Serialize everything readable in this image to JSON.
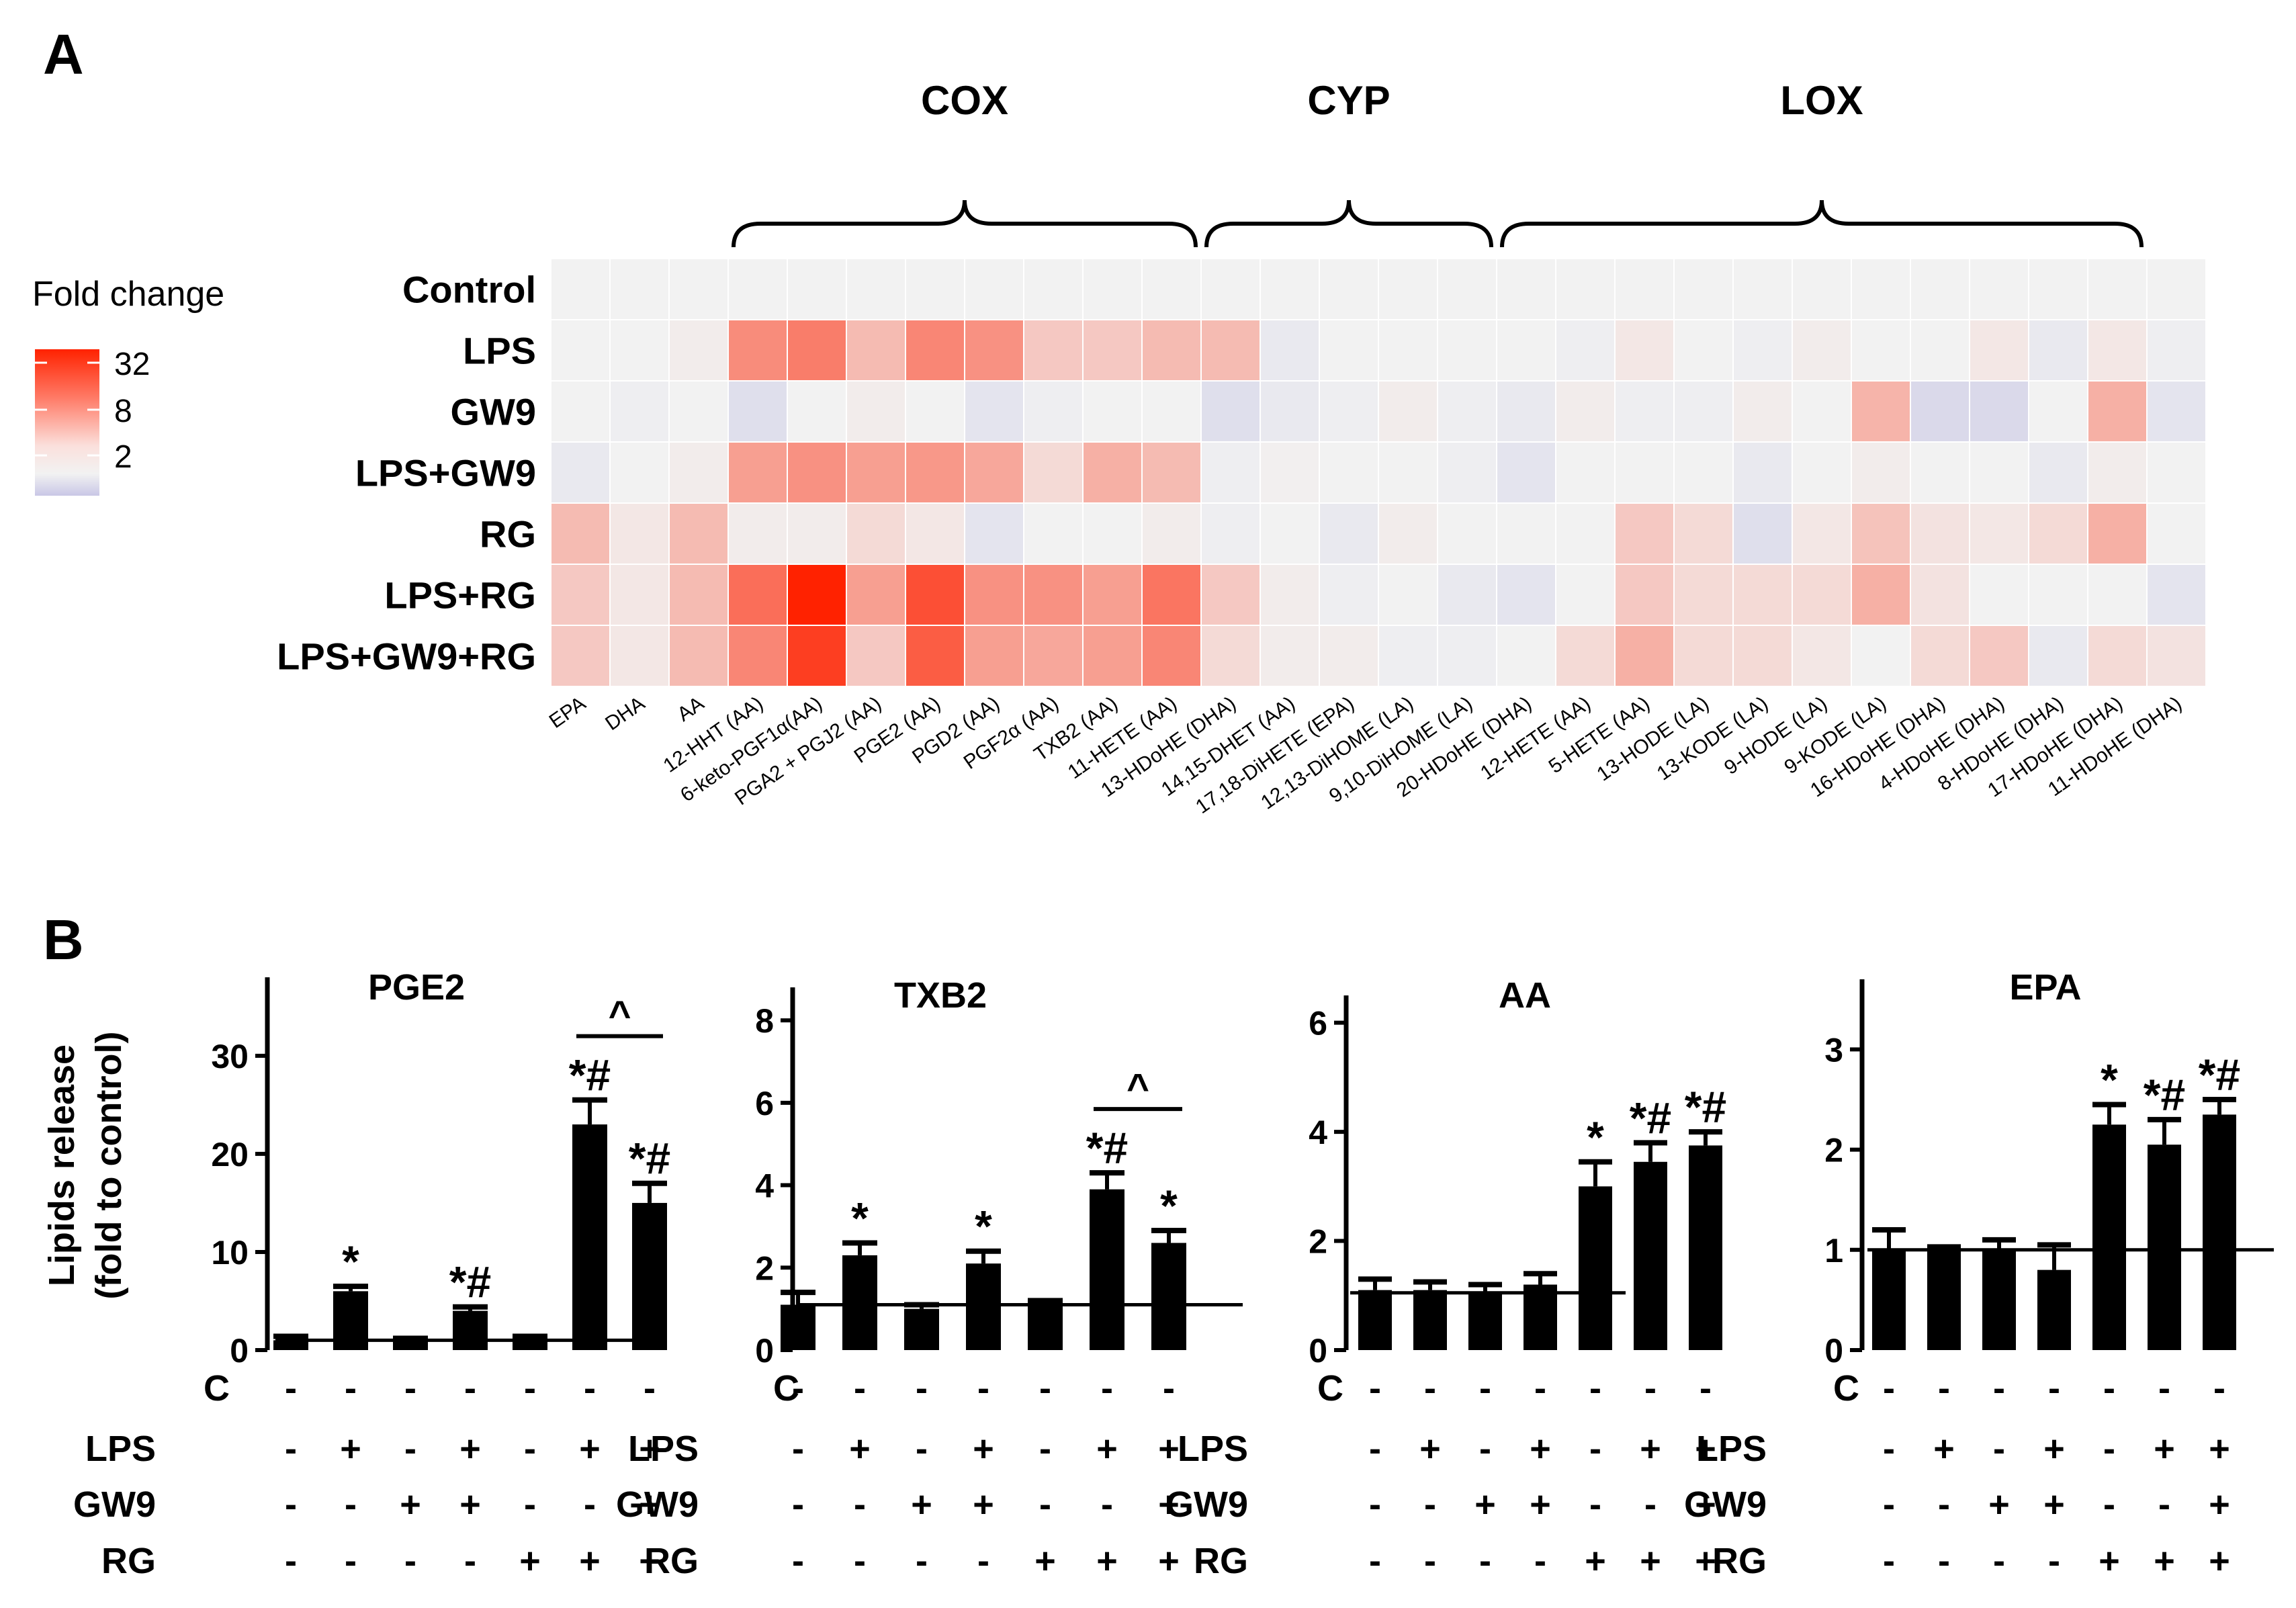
{
  "panel_labels": {
    "a": "A",
    "b": "B"
  },
  "heatmap": {
    "legend_title": "Fold change",
    "legend_ticks": [
      "32",
      "8",
      "2"
    ],
    "groups": [
      {
        "label": "COX",
        "start_col": 3,
        "end_col": 10
      },
      {
        "label": "CYP",
        "start_col": 11,
        "end_col": 15
      },
      {
        "label": "LOX",
        "start_col": 16,
        "end_col": 26
      }
    ],
    "rows": [
      "Control",
      "LPS",
      "GW9",
      "LPS+GW9",
      "RG",
      "LPS+RG",
      "LPS+GW9+RG"
    ],
    "columns": [
      "EPA",
      "DHA",
      "AA",
      "12-HHT (AA)",
      "6-keto-PGF1α(AA)",
      "PGA2 + PGJ2 (AA)",
      "PGE2 (AA)",
      "PGD2 (AA)",
      "PGF2α (AA)",
      "TXB2 (AA)",
      "11-HETE (AA)",
      "13-HDoHE (DHA)",
      "14,15-DHET (AA)",
      "17,18-DiHETE (EPA)",
      "12,13-DiHOME (LA)",
      "9,10-DiHOME (LA)",
      "20-HDoHE (DHA)",
      "12-HETE (AA)",
      "5-HETE (AA)",
      "13-HODE (LA)",
      "13-KODE (LA)",
      "9-HODE (LA)",
      "9-KODE (LA)",
      "16-HDoHE (DHA)",
      "4-HDoHE (DHA)",
      "8-HDoHE (DHA)",
      "17-HDoHE (DHA)",
      "11-HDoHE (DHA)"
    ]
  },
  "chart_data": [
    {
      "type": "heatmap",
      "title": "Fold change",
      "color_scale": {
        "min": 0.5,
        "mid": 1,
        "max": 32,
        "low_color": "#b8b6df",
        "mid_color": "#f2f2f2",
        "high_color": "#ff2200"
      },
      "rows": [
        "Control",
        "LPS",
        "GW9",
        "LPS+GW9",
        "RG",
        "LPS+RG",
        "LPS+GW9+RG"
      ],
      "columns": [
        "EPA",
        "DHA",
        "AA",
        "12-HHT (AA)",
        "6-keto-PGF1α(AA)",
        "PGA2 + PGJ2 (AA)",
        "PGE2 (AA)",
        "PGD2 (AA)",
        "PGF2α (AA)",
        "TXB2 (AA)",
        "11-HETE (AA)",
        "13-HDoHE (DHA)",
        "14,15-DHET (AA)",
        "17,18-DiHETE (EPA)",
        "12,13-DiHOME (LA)",
        "9,10-DiHOME (LA)",
        "20-HDoHE (DHA)",
        "12-HETE (AA)",
        "5-HETE (AA)",
        "13-HODE (LA)",
        "13-KODE (LA)",
        "9-HODE (LA)",
        "9-KODE (LA)",
        "16-HDoHE (DHA)",
        "4-HDoHE (DHA)",
        "8-HDoHE (DHA)",
        "17-HDoHE (DHA)",
        "11-HDoHE (DHA)"
      ],
      "values": [
        [
          1,
          1,
          1,
          1,
          1,
          1,
          1,
          1,
          1,
          1,
          1,
          1,
          1,
          1,
          1,
          1,
          1,
          1,
          1,
          1,
          1,
          1,
          1,
          1,
          1,
          1,
          1,
          1
        ],
        [
          1,
          1,
          1.1,
          5.5,
          7,
          2.5,
          6,
          5,
          2,
          2,
          2.5,
          2.5,
          0.9,
          1,
          1,
          1,
          1,
          0.95,
          1.2,
          1,
          0.95,
          1.1,
          1,
          1,
          1.2,
          0.9,
          1.2,
          0.95
        ],
        [
          1,
          0.95,
          1,
          0.8,
          1,
          1.1,
          1,
          0.85,
          0.95,
          1,
          1,
          0.8,
          0.9,
          0.95,
          1.1,
          0.95,
          0.9,
          1.1,
          0.95,
          0.95,
          1.1,
          1,
          2.8,
          0.75,
          0.75,
          1,
          3,
          0.85
        ],
        [
          0.9,
          1,
          1.1,
          4,
          5,
          4,
          4.5,
          3.5,
          1.5,
          3,
          2.5,
          0.95,
          1.05,
          1,
          1,
          0.95,
          0.85,
          1,
          1,
          1,
          0.9,
          1,
          1.1,
          1,
          1,
          0.9,
          1.1,
          1
        ],
        [
          2.5,
          1.2,
          2.5,
          1.1,
          1.1,
          1.5,
          1.2,
          0.85,
          1,
          1,
          1.1,
          0.95,
          1,
          0.9,
          1.1,
          1,
          1,
          1,
          2,
          1.5,
          0.8,
          1.2,
          2.2,
          1.3,
          1.2,
          1.5,
          3,
          1
        ],
        [
          2,
          1.2,
          2.5,
          9,
          32,
          4,
          15,
          5,
          5,
          4,
          8,
          2,
          1.1,
          0.95,
          1,
          0.9,
          0.85,
          1,
          2,
          1.5,
          1.5,
          1.5,
          3,
          1.3,
          1,
          1,
          1,
          0.85
        ],
        [
          2,
          1.2,
          2.5,
          6,
          20,
          2,
          12,
          4,
          3.5,
          4,
          6,
          1.5,
          1.1,
          1.1,
          0.95,
          0.95,
          1,
          1.5,
          3,
          1.5,
          1.5,
          1.2,
          1,
          1.5,
          2,
          0.9,
          1.5,
          1.3
        ]
      ]
    },
    {
      "type": "bar",
      "title": "PGE2",
      "ylabel": "Lipids release\n(fold to control)",
      "ylim": [
        0,
        38
      ],
      "yticks": [
        "0",
        "10",
        "20",
        "30"
      ],
      "ytick_values": [
        0,
        10,
        20,
        30
      ],
      "reference_line": 1,
      "values": [
        1,
        6,
        1,
        4,
        1,
        23,
        15
      ],
      "errors": [
        0.4,
        0.5,
        0.2,
        0.4,
        0.4,
        2.5,
        2
      ],
      "significance": [
        "",
        "*",
        "",
        "*#",
        "",
        "*#",
        "*#"
      ],
      "caret": {
        "text": "^",
        "bars": [
          5,
          6
        ]
      }
    },
    {
      "type": "bar",
      "title": "TXB2",
      "ylabel": "",
      "ylim": [
        0,
        8.8
      ],
      "yticks": [
        "0",
        "2",
        "4",
        "6",
        "8"
      ],
      "ytick_values": [
        0,
        2,
        4,
        6,
        8
      ],
      "reference_line": 1.1,
      "values": [
        1.1,
        2.3,
        1,
        2.1,
        1.1,
        3.9,
        2.6
      ],
      "errors": [
        0.3,
        0.3,
        0.1,
        0.3,
        0.1,
        0.4,
        0.3
      ],
      "significance": [
        "",
        "*",
        "",
        "*",
        "",
        "*#",
        "*"
      ],
      "caret": {
        "text": "^",
        "bars": [
          5,
          6
        ]
      }
    },
    {
      "type": "bar",
      "title": "AA",
      "ylabel": "",
      "ylim": [
        0,
        6.5
      ],
      "yticks": [
        "0",
        "2",
        "4",
        "6"
      ],
      "ytick_values": [
        0,
        2,
        4,
        6
      ],
      "reference_line": 1.05,
      "values": [
        1.1,
        1.1,
        1.05,
        1.2,
        3,
        3.45,
        3.75
      ],
      "errors": [
        0.2,
        0.15,
        0.15,
        0.2,
        0.45,
        0.35,
        0.25
      ],
      "significance": [
        "",
        "",
        "",
        "",
        "*",
        "*#",
        "*#"
      ]
    },
    {
      "type": "bar",
      "title": "EPA",
      "ylabel": "",
      "ylim": [
        0,
        3.7
      ],
      "yticks": [
        "0",
        "1",
        "2",
        "3"
      ],
      "ytick_values": [
        0,
        1,
        2,
        3
      ],
      "reference_line": 1,
      "values": [
        1,
        1,
        1,
        0.8,
        2.25,
        2.05,
        2.35
      ],
      "errors": [
        0.2,
        0.03,
        0.1,
        0.25,
        0.2,
        0.25,
        0.15
      ],
      "significance": [
        "",
        "",
        "",
        "",
        "*",
        "*#",
        "*#"
      ]
    }
  ],
  "treatment_table": {
    "row_names": [
      "C",
      "LPS",
      "GW9",
      "RG"
    ],
    "signs": [
      [
        "-",
        "-",
        "-",
        "-",
        "-",
        "-",
        "-"
      ],
      [
        "-",
        "+",
        "-",
        "+",
        "-",
        "+",
        "+"
      ],
      [
        "-",
        "-",
        "+",
        "+",
        "-",
        "-",
        "+"
      ],
      [
        "-",
        "-",
        "-",
        "-",
        "+",
        "+",
        "+"
      ]
    ]
  }
}
